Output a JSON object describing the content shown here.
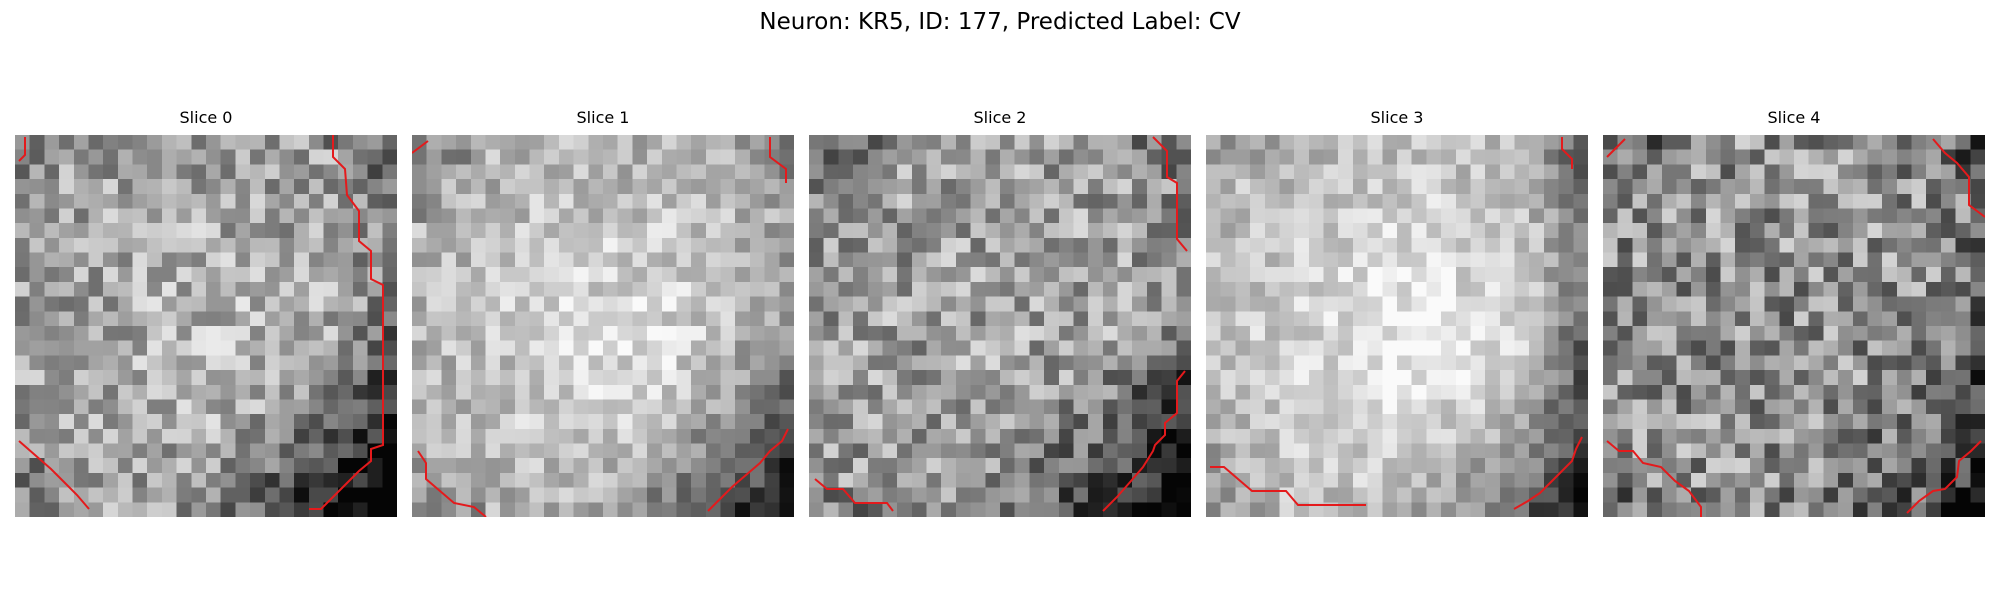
{
  "figure": {
    "title": "Neuron: KR5, ID: 177, Predicted Label: CV"
  },
  "panels": [
    {
      "title": "Slice 0"
    },
    {
      "title": "Slice 1"
    },
    {
      "title": "Slice 2"
    },
    {
      "title": "Slice 3"
    },
    {
      "title": "Slice 4"
    }
  ],
  "colors": {
    "contour": "#e41a1c",
    "background": "#ffffff"
  }
}
